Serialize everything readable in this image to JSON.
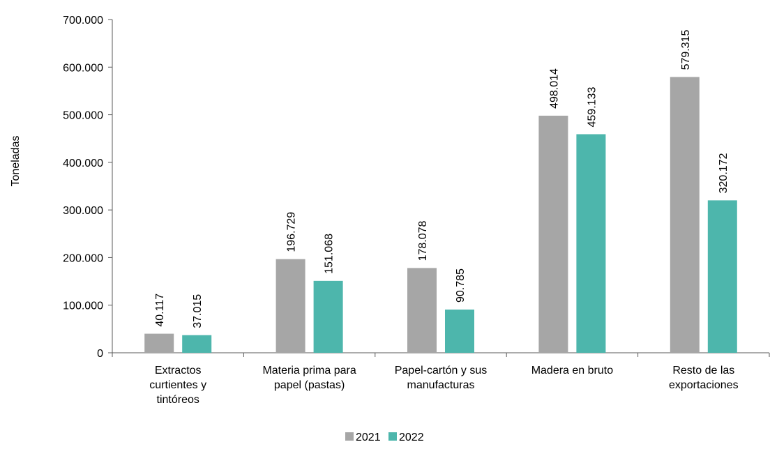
{
  "chart_data": {
    "type": "bar",
    "title": "",
    "xlabel": "",
    "ylabel": "Toneladas",
    "ylim": [
      0,
      700000
    ],
    "yticks": [
      0,
      100000,
      200000,
      300000,
      400000,
      500000,
      600000,
      700000
    ],
    "ytick_labels": [
      "0",
      "100.000",
      "200.000",
      "300.000",
      "400.000",
      "500.000",
      "600.000",
      "700.000"
    ],
    "grid": false,
    "legend_position": "bottom",
    "categories": [
      [
        "Extractos",
        "curtientes y",
        "tintóreos"
      ],
      [
        "Materia prima para",
        "papel (pastas)"
      ],
      [
        "Papel-cartón y sus",
        "manufacturas"
      ],
      [
        "Madera en bruto"
      ],
      [
        "Resto de las",
        "exportaciones"
      ]
    ],
    "series": [
      {
        "name": "2021",
        "color": "#a6a6a6",
        "values": [
          40117,
          196729,
          178078,
          498014,
          579315
        ],
        "labels": [
          "40.117",
          "196.729",
          "178.078",
          "498.014",
          "579.315"
        ]
      },
      {
        "name": "2022",
        "color": "#4db6ac",
        "values": [
          37015,
          151068,
          90785,
          459133,
          320172
        ],
        "labels": [
          "37.015",
          "151.068",
          "90.785",
          "459.133",
          "320.172"
        ]
      }
    ]
  }
}
